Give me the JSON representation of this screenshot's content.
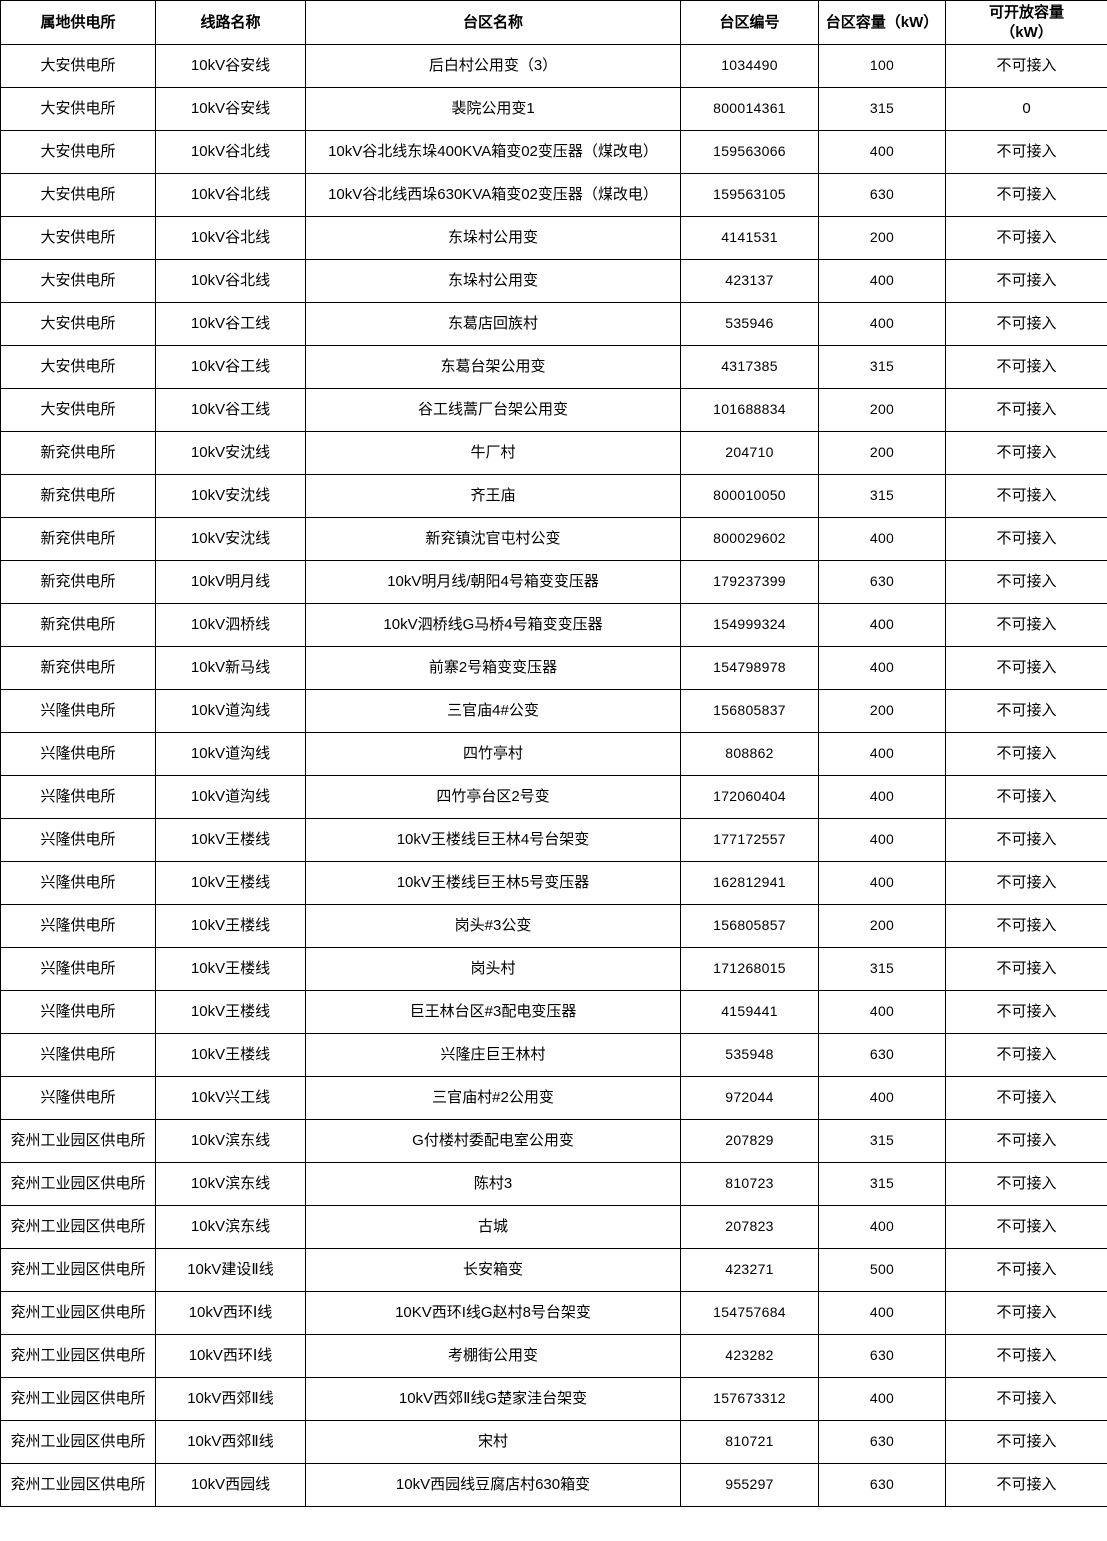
{
  "colors": {
    "border": "#000000",
    "text": "#000000",
    "background": "#ffffff"
  },
  "table": {
    "columns": [
      {
        "key": "station",
        "label": "属地供电所"
      },
      {
        "key": "line",
        "label": "线路名称"
      },
      {
        "key": "area_name",
        "label": "台区名称"
      },
      {
        "key": "area_id",
        "label": "台区编号"
      },
      {
        "key": "capacity_kw",
        "label": "台区容量（kW）"
      },
      {
        "key": "open_capacity_kw",
        "label": "可开放容量\n（kW）"
      }
    ],
    "rows": [
      [
        "大安供电所",
        "10kV谷安线",
        "后白村公用变（3）",
        "1034490",
        "100",
        "不可接入"
      ],
      [
        "大安供电所",
        "10kV谷安线",
        "裴院公用变1",
        "800014361",
        "315",
        "0"
      ],
      [
        "大安供电所",
        "10kV谷北线",
        "10kV谷北线东垛400KVA箱变02变压器（煤改电）",
        "159563066",
        "400",
        "不可接入"
      ],
      [
        "大安供电所",
        "10kV谷北线",
        "10kV谷北线西垛630KVA箱变02变压器（煤改电）",
        "159563105",
        "630",
        "不可接入"
      ],
      [
        "大安供电所",
        "10kV谷北线",
        "东垛村公用变",
        "4141531",
        "200",
        "不可接入"
      ],
      [
        "大安供电所",
        "10kV谷北线",
        "东垛村公用变",
        "423137",
        "400",
        "不可接入"
      ],
      [
        "大安供电所",
        "10kV谷工线",
        "东葛店回族村",
        "535946",
        "400",
        "不可接入"
      ],
      [
        "大安供电所",
        "10kV谷工线",
        "东葛台架公用变",
        "4317385",
        "315",
        "不可接入"
      ],
      [
        "大安供电所",
        "10kV谷工线",
        "谷工线蒿厂台架公用变",
        "101688834",
        "200",
        "不可接入"
      ],
      [
        "新兖供电所",
        "10kV安沈线",
        "牛厂村",
        "204710",
        "200",
        "不可接入"
      ],
      [
        "新兖供电所",
        "10kV安沈线",
        "齐王庙",
        "800010050",
        "315",
        "不可接入"
      ],
      [
        "新兖供电所",
        "10kV安沈线",
        "新兖镇沈官屯村公变",
        "800029602",
        "400",
        "不可接入"
      ],
      [
        "新兖供电所",
        "10kV明月线",
        "10kV明月线/朝阳4号箱变变压器",
        "179237399",
        "630",
        "不可接入"
      ],
      [
        "新兖供电所",
        "10kV泗桥线",
        "10kV泗桥线G马桥4号箱变变压器",
        "154999324",
        "400",
        "不可接入"
      ],
      [
        "新兖供电所",
        "10kV新马线",
        "前寨2号箱变变压器",
        "154798978",
        "400",
        "不可接入"
      ],
      [
        "兴隆供电所",
        "10kV道沟线",
        "三官庙4#公变",
        "156805837",
        "200",
        "不可接入"
      ],
      [
        "兴隆供电所",
        "10kV道沟线",
        "四竹亭村",
        "808862",
        "400",
        "不可接入"
      ],
      [
        "兴隆供电所",
        "10kV道沟线",
        "四竹亭台区2号变",
        "172060404",
        "400",
        "不可接入"
      ],
      [
        "兴隆供电所",
        "10kV王楼线",
        "10kV王楼线巨王林4号台架变",
        "177172557",
        "400",
        "不可接入"
      ],
      [
        "兴隆供电所",
        "10kV王楼线",
        "10kV王楼线巨王林5号变压器",
        "162812941",
        "400",
        "不可接入"
      ],
      [
        "兴隆供电所",
        "10kV王楼线",
        "岗头#3公变",
        "156805857",
        "200",
        "不可接入"
      ],
      [
        "兴隆供电所",
        "10kV王楼线",
        "岗头村",
        "171268015",
        "315",
        "不可接入"
      ],
      [
        "兴隆供电所",
        "10kV王楼线",
        "巨王林台区#3配电变压器",
        "4159441",
        "400",
        "不可接入"
      ],
      [
        "兴隆供电所",
        "10kV王楼线",
        "兴隆庄巨王林村",
        "535948",
        "630",
        "不可接入"
      ],
      [
        "兴隆供电所",
        "10kV兴工线",
        "三官庙村#2公用变",
        "972044",
        "400",
        "不可接入"
      ],
      [
        "兖州工业园区供电所",
        "10kV滨东线",
        "G付楼村委配电室公用变",
        "207829",
        "315",
        "不可接入"
      ],
      [
        "兖州工业园区供电所",
        "10kV滨东线",
        "陈村3",
        "810723",
        "315",
        "不可接入"
      ],
      [
        "兖州工业园区供电所",
        "10kV滨东线",
        "古城",
        "207823",
        "400",
        "不可接入"
      ],
      [
        "兖州工业园区供电所",
        "10kV建设Ⅱ线",
        "长安箱变",
        "423271",
        "500",
        "不可接入"
      ],
      [
        "兖州工业园区供电所",
        "10kV西环Ⅰ线",
        "10KV西环I线G赵村8号台架变",
        "154757684",
        "400",
        "不可接入"
      ],
      [
        "兖州工业园区供电所",
        "10kV西环Ⅰ线",
        "考棚街公用变",
        "423282",
        "630",
        "不可接入"
      ],
      [
        "兖州工业园区供电所",
        "10kV西郊Ⅱ线",
        "10kV西郊Ⅱ线G楚家洼台架变",
        "157673312",
        "400",
        "不可接入"
      ],
      [
        "兖州工业园区供电所",
        "10kV西郊Ⅱ线",
        "宋村",
        "810721",
        "630",
        "不可接入"
      ],
      [
        "兖州工业园区供电所",
        "10kV西园线",
        "10kV西园线豆腐店村630箱变",
        "955297",
        "630",
        "不可接入"
      ]
    ]
  }
}
